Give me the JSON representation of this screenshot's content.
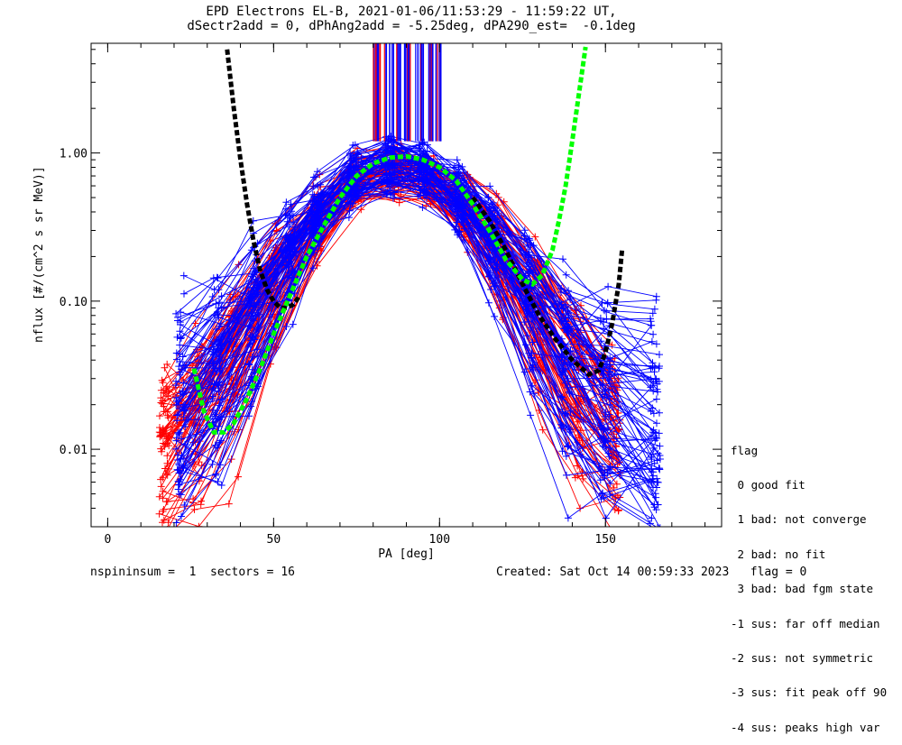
{
  "title_line1": "EPD Electrons EL-B, 2021-01-06/11:53:29 - 11:59:22 UT,",
  "title_line2": "dSectr2add = 0, dPhAng2add = -5.25deg, dPA290_est=  -0.1deg",
  "footer": {
    "left": "nspininsum =  1  sectors = 16",
    "right": "Created: Sat Oct 14 00:59:33 2023   flag = 0"
  },
  "legend": {
    "title": "flag",
    "items": [
      " 0 good fit",
      " 1 bad: not converge",
      " 2 bad: no fit",
      " 3 bad: bad fgm state",
      "-1 sus: far off median",
      "-2 sus: not symmetric",
      "-3 sus: fit peak off 90",
      "-4 sus: peaks high var"
    ]
  },
  "chart_data": {
    "type": "line",
    "xlabel": "PA [deg]",
    "ylabel": "nflux [#/(cm^2 s sr MeV)]",
    "xlim": [
      -5,
      185
    ],
    "ylim": [
      0.003,
      5.5
    ],
    "yscale": "log",
    "x_ticks": [
      0,
      50,
      100,
      150
    ],
    "y_ticks": [
      {
        "value": 0.01,
        "label": "0.01"
      },
      {
        "value": 0.1,
        "label": "0.10"
      },
      {
        "value": 1.0,
        "label": "1.00"
      }
    ],
    "colors": {
      "red": "#ff0000",
      "blue": "#0000ff",
      "black": "#000000",
      "green": "#00ff00"
    },
    "series": [
      {
        "color": "red",
        "style": "spectra",
        "pa": [
          17,
          27,
          38,
          50,
          63,
          75,
          87,
          97,
          108,
          118,
          130,
          142,
          153
        ],
        "peak_flux_range": [
          0.55,
          0.95
        ],
        "count": 70,
        "edge_flux_range": [
          0.003,
          0.025
        ]
      },
      {
        "color": "blue",
        "style": "spectra",
        "pa": [
          22,
          33,
          44,
          55,
          63,
          74,
          85,
          95,
          106,
          116,
          127,
          138,
          150,
          165
        ],
        "peak_flux_range": [
          0.6,
          1.05
        ],
        "count": 80,
        "edge_flux_range": [
          0.003,
          0.09
        ]
      },
      {
        "color": "black",
        "style": "fit-dashed",
        "x": [
          36,
          38,
          40,
          42,
          44,
          46,
          48,
          50,
          52,
          54,
          56,
          58
        ],
        "y": [
          5.0,
          2.0,
          0.9,
          0.45,
          0.25,
          0.16,
          0.12,
          0.1,
          0.09,
          0.09,
          0.095,
          0.11
        ]
      },
      {
        "color": "black",
        "style": "fit-dashed",
        "x": [
          110,
          115,
          120,
          125,
          130,
          135,
          140,
          145,
          148,
          150,
          152,
          154,
          155
        ],
        "y": [
          0.5,
          0.35,
          0.22,
          0.13,
          0.08,
          0.055,
          0.04,
          0.032,
          0.034,
          0.045,
          0.07,
          0.13,
          0.22
        ]
      },
      {
        "color": "green",
        "style": "fit-dashed",
        "x": [
          26,
          29,
          32,
          35,
          38,
          42,
          46,
          50,
          55,
          60,
          65,
          70,
          75,
          80,
          85,
          90,
          95,
          100,
          105,
          110,
          115,
          120,
          125,
          128,
          131,
          134,
          136,
          138,
          140,
          142,
          144
        ],
        "y": [
          0.035,
          0.018,
          0.013,
          0.013,
          0.015,
          0.022,
          0.035,
          0.06,
          0.11,
          0.2,
          0.32,
          0.5,
          0.7,
          0.85,
          0.93,
          0.95,
          0.9,
          0.8,
          0.65,
          0.45,
          0.3,
          0.19,
          0.14,
          0.13,
          0.15,
          0.22,
          0.35,
          0.6,
          1.2,
          2.5,
          5.2
        ]
      }
    ],
    "vertical_markers": {
      "pa_range": [
        80,
        101
      ],
      "flux_bottom": 1.2,
      "colors": [
        "red",
        "blue"
      ]
    }
  }
}
